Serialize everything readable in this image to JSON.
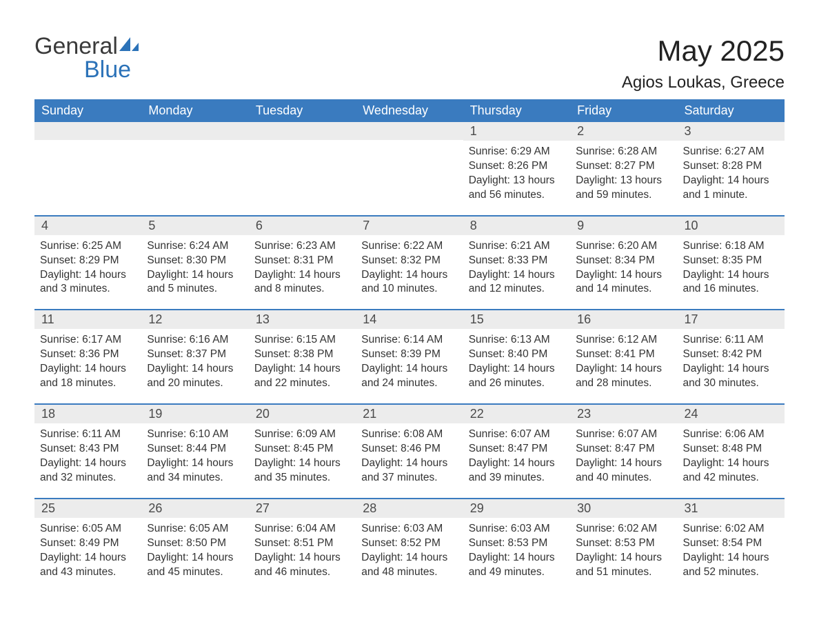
{
  "brand": {
    "part1": "General",
    "part2": "Blue"
  },
  "month_title": "May 2025",
  "location": "Agios Loukas, Greece",
  "colors": {
    "header_bg": "#3a7bbf",
    "header_text": "#ffffff",
    "daynum_bg": "#ececec",
    "daynum_text": "#4a4a4a",
    "body_text": "#333333",
    "rule": "#3a7bbf",
    "brand_gray": "#3a3a3a",
    "brand_blue": "#2b72b8"
  },
  "days_of_week": [
    "Sunday",
    "Monday",
    "Tuesday",
    "Wednesday",
    "Thursday",
    "Friday",
    "Saturday"
  ],
  "weeks": [
    [
      {
        "n": "",
        "sr": "",
        "ss": "",
        "dl": ""
      },
      {
        "n": "",
        "sr": "",
        "ss": "",
        "dl": ""
      },
      {
        "n": "",
        "sr": "",
        "ss": "",
        "dl": ""
      },
      {
        "n": "",
        "sr": "",
        "ss": "",
        "dl": ""
      },
      {
        "n": "1",
        "sr": "Sunrise: 6:29 AM",
        "ss": "Sunset: 8:26 PM",
        "dl": "Daylight: 13 hours and 56 minutes."
      },
      {
        "n": "2",
        "sr": "Sunrise: 6:28 AM",
        "ss": "Sunset: 8:27 PM",
        "dl": "Daylight: 13 hours and 59 minutes."
      },
      {
        "n": "3",
        "sr": "Sunrise: 6:27 AM",
        "ss": "Sunset: 8:28 PM",
        "dl": "Daylight: 14 hours and 1 minute."
      }
    ],
    [
      {
        "n": "4",
        "sr": "Sunrise: 6:25 AM",
        "ss": "Sunset: 8:29 PM",
        "dl": "Daylight: 14 hours and 3 minutes."
      },
      {
        "n": "5",
        "sr": "Sunrise: 6:24 AM",
        "ss": "Sunset: 8:30 PM",
        "dl": "Daylight: 14 hours and 5 minutes."
      },
      {
        "n": "6",
        "sr": "Sunrise: 6:23 AM",
        "ss": "Sunset: 8:31 PM",
        "dl": "Daylight: 14 hours and 8 minutes."
      },
      {
        "n": "7",
        "sr": "Sunrise: 6:22 AM",
        "ss": "Sunset: 8:32 PM",
        "dl": "Daylight: 14 hours and 10 minutes."
      },
      {
        "n": "8",
        "sr": "Sunrise: 6:21 AM",
        "ss": "Sunset: 8:33 PM",
        "dl": "Daylight: 14 hours and 12 minutes."
      },
      {
        "n": "9",
        "sr": "Sunrise: 6:20 AM",
        "ss": "Sunset: 8:34 PM",
        "dl": "Daylight: 14 hours and 14 minutes."
      },
      {
        "n": "10",
        "sr": "Sunrise: 6:18 AM",
        "ss": "Sunset: 8:35 PM",
        "dl": "Daylight: 14 hours and 16 minutes."
      }
    ],
    [
      {
        "n": "11",
        "sr": "Sunrise: 6:17 AM",
        "ss": "Sunset: 8:36 PM",
        "dl": "Daylight: 14 hours and 18 minutes."
      },
      {
        "n": "12",
        "sr": "Sunrise: 6:16 AM",
        "ss": "Sunset: 8:37 PM",
        "dl": "Daylight: 14 hours and 20 minutes."
      },
      {
        "n": "13",
        "sr": "Sunrise: 6:15 AM",
        "ss": "Sunset: 8:38 PM",
        "dl": "Daylight: 14 hours and 22 minutes."
      },
      {
        "n": "14",
        "sr": "Sunrise: 6:14 AM",
        "ss": "Sunset: 8:39 PM",
        "dl": "Daylight: 14 hours and 24 minutes."
      },
      {
        "n": "15",
        "sr": "Sunrise: 6:13 AM",
        "ss": "Sunset: 8:40 PM",
        "dl": "Daylight: 14 hours and 26 minutes."
      },
      {
        "n": "16",
        "sr": "Sunrise: 6:12 AM",
        "ss": "Sunset: 8:41 PM",
        "dl": "Daylight: 14 hours and 28 minutes."
      },
      {
        "n": "17",
        "sr": "Sunrise: 6:11 AM",
        "ss": "Sunset: 8:42 PM",
        "dl": "Daylight: 14 hours and 30 minutes."
      }
    ],
    [
      {
        "n": "18",
        "sr": "Sunrise: 6:11 AM",
        "ss": "Sunset: 8:43 PM",
        "dl": "Daylight: 14 hours and 32 minutes."
      },
      {
        "n": "19",
        "sr": "Sunrise: 6:10 AM",
        "ss": "Sunset: 8:44 PM",
        "dl": "Daylight: 14 hours and 34 minutes."
      },
      {
        "n": "20",
        "sr": "Sunrise: 6:09 AM",
        "ss": "Sunset: 8:45 PM",
        "dl": "Daylight: 14 hours and 35 minutes."
      },
      {
        "n": "21",
        "sr": "Sunrise: 6:08 AM",
        "ss": "Sunset: 8:46 PM",
        "dl": "Daylight: 14 hours and 37 minutes."
      },
      {
        "n": "22",
        "sr": "Sunrise: 6:07 AM",
        "ss": "Sunset: 8:47 PM",
        "dl": "Daylight: 14 hours and 39 minutes."
      },
      {
        "n": "23",
        "sr": "Sunrise: 6:07 AM",
        "ss": "Sunset: 8:47 PM",
        "dl": "Daylight: 14 hours and 40 minutes."
      },
      {
        "n": "24",
        "sr": "Sunrise: 6:06 AM",
        "ss": "Sunset: 8:48 PM",
        "dl": "Daylight: 14 hours and 42 minutes."
      }
    ],
    [
      {
        "n": "25",
        "sr": "Sunrise: 6:05 AM",
        "ss": "Sunset: 8:49 PM",
        "dl": "Daylight: 14 hours and 43 minutes."
      },
      {
        "n": "26",
        "sr": "Sunrise: 6:05 AM",
        "ss": "Sunset: 8:50 PM",
        "dl": "Daylight: 14 hours and 45 minutes."
      },
      {
        "n": "27",
        "sr": "Sunrise: 6:04 AM",
        "ss": "Sunset: 8:51 PM",
        "dl": "Daylight: 14 hours and 46 minutes."
      },
      {
        "n": "28",
        "sr": "Sunrise: 6:03 AM",
        "ss": "Sunset: 8:52 PM",
        "dl": "Daylight: 14 hours and 48 minutes."
      },
      {
        "n": "29",
        "sr": "Sunrise: 6:03 AM",
        "ss": "Sunset: 8:53 PM",
        "dl": "Daylight: 14 hours and 49 minutes."
      },
      {
        "n": "30",
        "sr": "Sunrise: 6:02 AM",
        "ss": "Sunset: 8:53 PM",
        "dl": "Daylight: 14 hours and 51 minutes."
      },
      {
        "n": "31",
        "sr": "Sunrise: 6:02 AM",
        "ss": "Sunset: 8:54 PM",
        "dl": "Daylight: 14 hours and 52 minutes."
      }
    ]
  ]
}
